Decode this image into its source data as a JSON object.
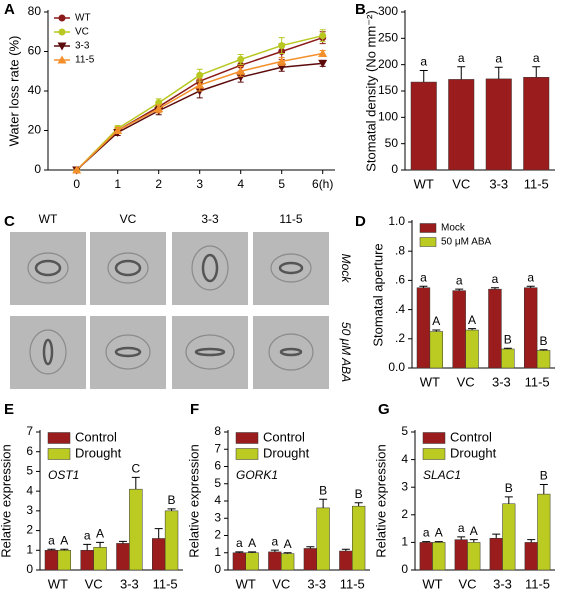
{
  "chart_data": [
    {
      "type": "line",
      "panel": "A",
      "ylabel": "Water loss rate (%)",
      "x": [
        0,
        1,
        2,
        3,
        4,
        5,
        6
      ],
      "xlim": [
        -0.7,
        6.3
      ],
      "xticks": [
        0,
        1,
        2,
        3,
        4,
        5,
        {
          "value": 6,
          "label": "6(h)"
        }
      ],
      "ylim": [
        0,
        80
      ],
      "yticks": [
        0,
        20,
        40,
        60,
        80
      ],
      "legend": "upper left",
      "series": [
        {
          "name": "WT",
          "color": "#8b1a1a",
          "marker": "circle",
          "values": [
            0,
            20,
            32,
            45,
            53,
            60,
            67
          ],
          "errors": [
            0,
            1.5,
            2,
            3,
            3,
            4,
            3
          ]
        },
        {
          "name": "VC",
          "color": "#b8c820",
          "marker": "circle",
          "values": [
            0,
            21,
            34,
            48,
            56,
            63,
            68
          ],
          "errors": [
            0,
            1.5,
            2,
            3,
            2.5,
            4,
            3
          ]
        },
        {
          "name": "3-3",
          "color": "#5c0a0a",
          "marker": "triangle-down",
          "values": [
            0,
            19,
            30,
            40,
            47,
            52,
            54
          ],
          "errors": [
            0,
            1.5,
            2,
            3.5,
            2.5,
            2,
            1.5
          ]
        },
        {
          "name": "11-5",
          "color": "#f4902c",
          "marker": "triangle-up",
          "values": [
            0,
            20,
            31,
            43,
            50,
            55,
            59
          ],
          "errors": [
            0,
            1.5,
            2,
            3,
            2.5,
            2,
            1.5
          ]
        }
      ]
    },
    {
      "type": "bar",
      "panel": "B",
      "ylabel": "Stomatal density (No mm⁻²)",
      "categories": [
        "WT",
        "VC",
        "3-3",
        "11-5"
      ],
      "values": [
        167,
        172,
        173,
        176
      ],
      "errors": [
        22,
        24,
        22,
        20
      ],
      "letters": [
        "a",
        "a",
        "a",
        "a"
      ],
      "color": "#9b1c1c",
      "ylim": [
        0,
        300
      ],
      "yticks": [
        0,
        50,
        100,
        150,
        200,
        250,
        300
      ]
    },
    {
      "type": "bar",
      "panel": "D",
      "ylabel": "Stomatal aperture",
      "categories": [
        "WT",
        "VC",
        "3-3",
        "11-5"
      ],
      "legend": "upper left",
      "ylim": [
        0,
        1
      ],
      "yticks": [
        {
          "value": 0,
          "label": "0.0"
        },
        {
          "value": 0.2,
          "label": ".2"
        },
        {
          "value": 0.4,
          "label": ".4"
        },
        {
          "value": 0.6,
          "label": ".6"
        },
        {
          "value": 0.8,
          "label": ".8"
        },
        {
          "value": 1,
          "label": "1.0"
        }
      ],
      "series": [
        {
          "name": "Mock",
          "color": "#9b1c1c",
          "values": [
            0.55,
            0.53,
            0.54,
            0.55
          ],
          "errors": [
            0.01,
            0.01,
            0.01,
            0.01
          ],
          "letters": [
            "a",
            "a",
            "a",
            "a"
          ]
        },
        {
          "name": "50 μM ABA",
          "color": "#bccb22",
          "values": [
            0.25,
            0.26,
            0.13,
            0.12
          ],
          "errors": [
            0.01,
            0.01,
            0.005,
            0.005
          ],
          "letters": [
            "A",
            "A",
            "B",
            "B"
          ]
        }
      ]
    },
    {
      "type": "bar",
      "panel": "E",
      "ylabel": "Relative expression",
      "gene": "OST1",
      "categories": [
        "WT",
        "VC",
        "3-3",
        "11-5"
      ],
      "legend": "upper left",
      "ylim": [
        0,
        7
      ],
      "yticks": [
        0,
        1,
        2,
        3,
        4,
        5,
        6,
        7
      ],
      "series": [
        {
          "name": "Control",
          "color": "#9b1c1c",
          "values": [
            1.0,
            1.0,
            1.35,
            1.6
          ],
          "errors": [
            0.05,
            0.3,
            0.1,
            0.5
          ],
          "letters": [
            "a",
            "a",
            null,
            null
          ]
        },
        {
          "name": "Drought",
          "color": "#bccb22",
          "values": [
            1.0,
            1.15,
            4.1,
            3.0
          ],
          "errors": [
            0.05,
            0.25,
            0.6,
            0.1
          ],
          "letters": [
            "A",
            "A",
            "C",
            "B"
          ]
        }
      ]
    },
    {
      "type": "bar",
      "panel": "F",
      "ylabel": "Relative expression",
      "gene": "GORK1",
      "categories": [
        "WT",
        "VC",
        "3-3",
        "11-5"
      ],
      "legend": "upper left",
      "ylim": [
        0,
        8
      ],
      "yticks": [
        0,
        1,
        2,
        3,
        4,
        5,
        6,
        7,
        8
      ],
      "series": [
        {
          "name": "Control",
          "color": "#9b1c1c",
          "values": [
            1.0,
            1.05,
            1.25,
            1.1
          ],
          "errors": [
            0.05,
            0.1,
            0.1,
            0.1
          ],
          "letters": [
            "a",
            "a",
            null,
            null
          ]
        },
        {
          "name": "Drought",
          "color": "#bccb22",
          "values": [
            1.0,
            0.95,
            3.6,
            3.7
          ],
          "errors": [
            0.05,
            0.05,
            0.5,
            0.2
          ],
          "letters": [
            "A",
            "A",
            "B",
            "B"
          ]
        }
      ]
    },
    {
      "type": "bar",
      "panel": "G",
      "ylabel": "Relative expression",
      "gene": "SLAC1",
      "categories": [
        "WT",
        "VC",
        "3-3",
        "11-5"
      ],
      "legend": "upper left",
      "ylim": [
        0,
        5
      ],
      "yticks": [
        0,
        1,
        2,
        3,
        4,
        5
      ],
      "series": [
        {
          "name": "Control",
          "color": "#9b1c1c",
          "values": [
            1.0,
            1.1,
            1.15,
            1.0
          ],
          "errors": [
            0.03,
            0.1,
            0.15,
            0.1
          ],
          "letters": [
            "a",
            "a",
            null,
            null
          ]
        },
        {
          "name": "Drought",
          "color": "#bccb22",
          "values": [
            1.0,
            1.0,
            2.4,
            2.75
          ],
          "errors": [
            0.03,
            0.1,
            0.25,
            0.35
          ],
          "letters": [
            "A",
            "A",
            "B",
            "B"
          ]
        }
      ]
    }
  ],
  "panel_c": {
    "panel": "C",
    "columns": [
      "WT",
      "VC",
      "3-3",
      "11-5"
    ],
    "rows": [
      "Mock",
      "50 μM ABA"
    ]
  }
}
